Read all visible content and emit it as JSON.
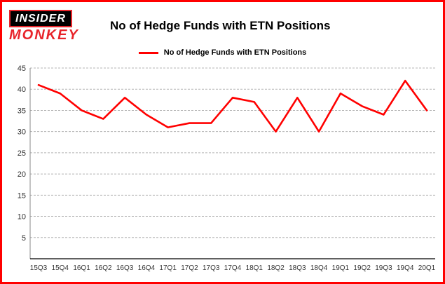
{
  "logo": {
    "line1": "INSIDER",
    "line2": "MONKEY"
  },
  "chart_data": {
    "type": "line",
    "title": "No of Hedge Funds with ETN Positions",
    "categories": [
      "15Q3",
      "15Q4",
      "16Q1",
      "16Q2",
      "16Q3",
      "16Q4",
      "17Q1",
      "17Q2",
      "17Q3",
      "17Q4",
      "18Q1",
      "18Q2",
      "18Q3",
      "18Q4",
      "19Q1",
      "19Q2",
      "19Q3",
      "19Q4",
      "20Q1"
    ],
    "series": [
      {
        "name": "No of Hedge Funds with ETN Positions",
        "values": [
          41,
          39,
          35,
          33,
          38,
          34,
          31,
          32,
          32,
          38,
          37,
          30,
          38,
          30,
          39,
          36,
          34,
          42,
          35
        ]
      }
    ],
    "ylim": [
      0,
      45
    ],
    "yticks": [
      5,
      10,
      15,
      20,
      25,
      30,
      35,
      40,
      45
    ],
    "grid": true,
    "legend_position": "top",
    "line_color": "#ff0000",
    "frame_color": "#ff0000",
    "xlabel": "",
    "ylabel": ""
  }
}
